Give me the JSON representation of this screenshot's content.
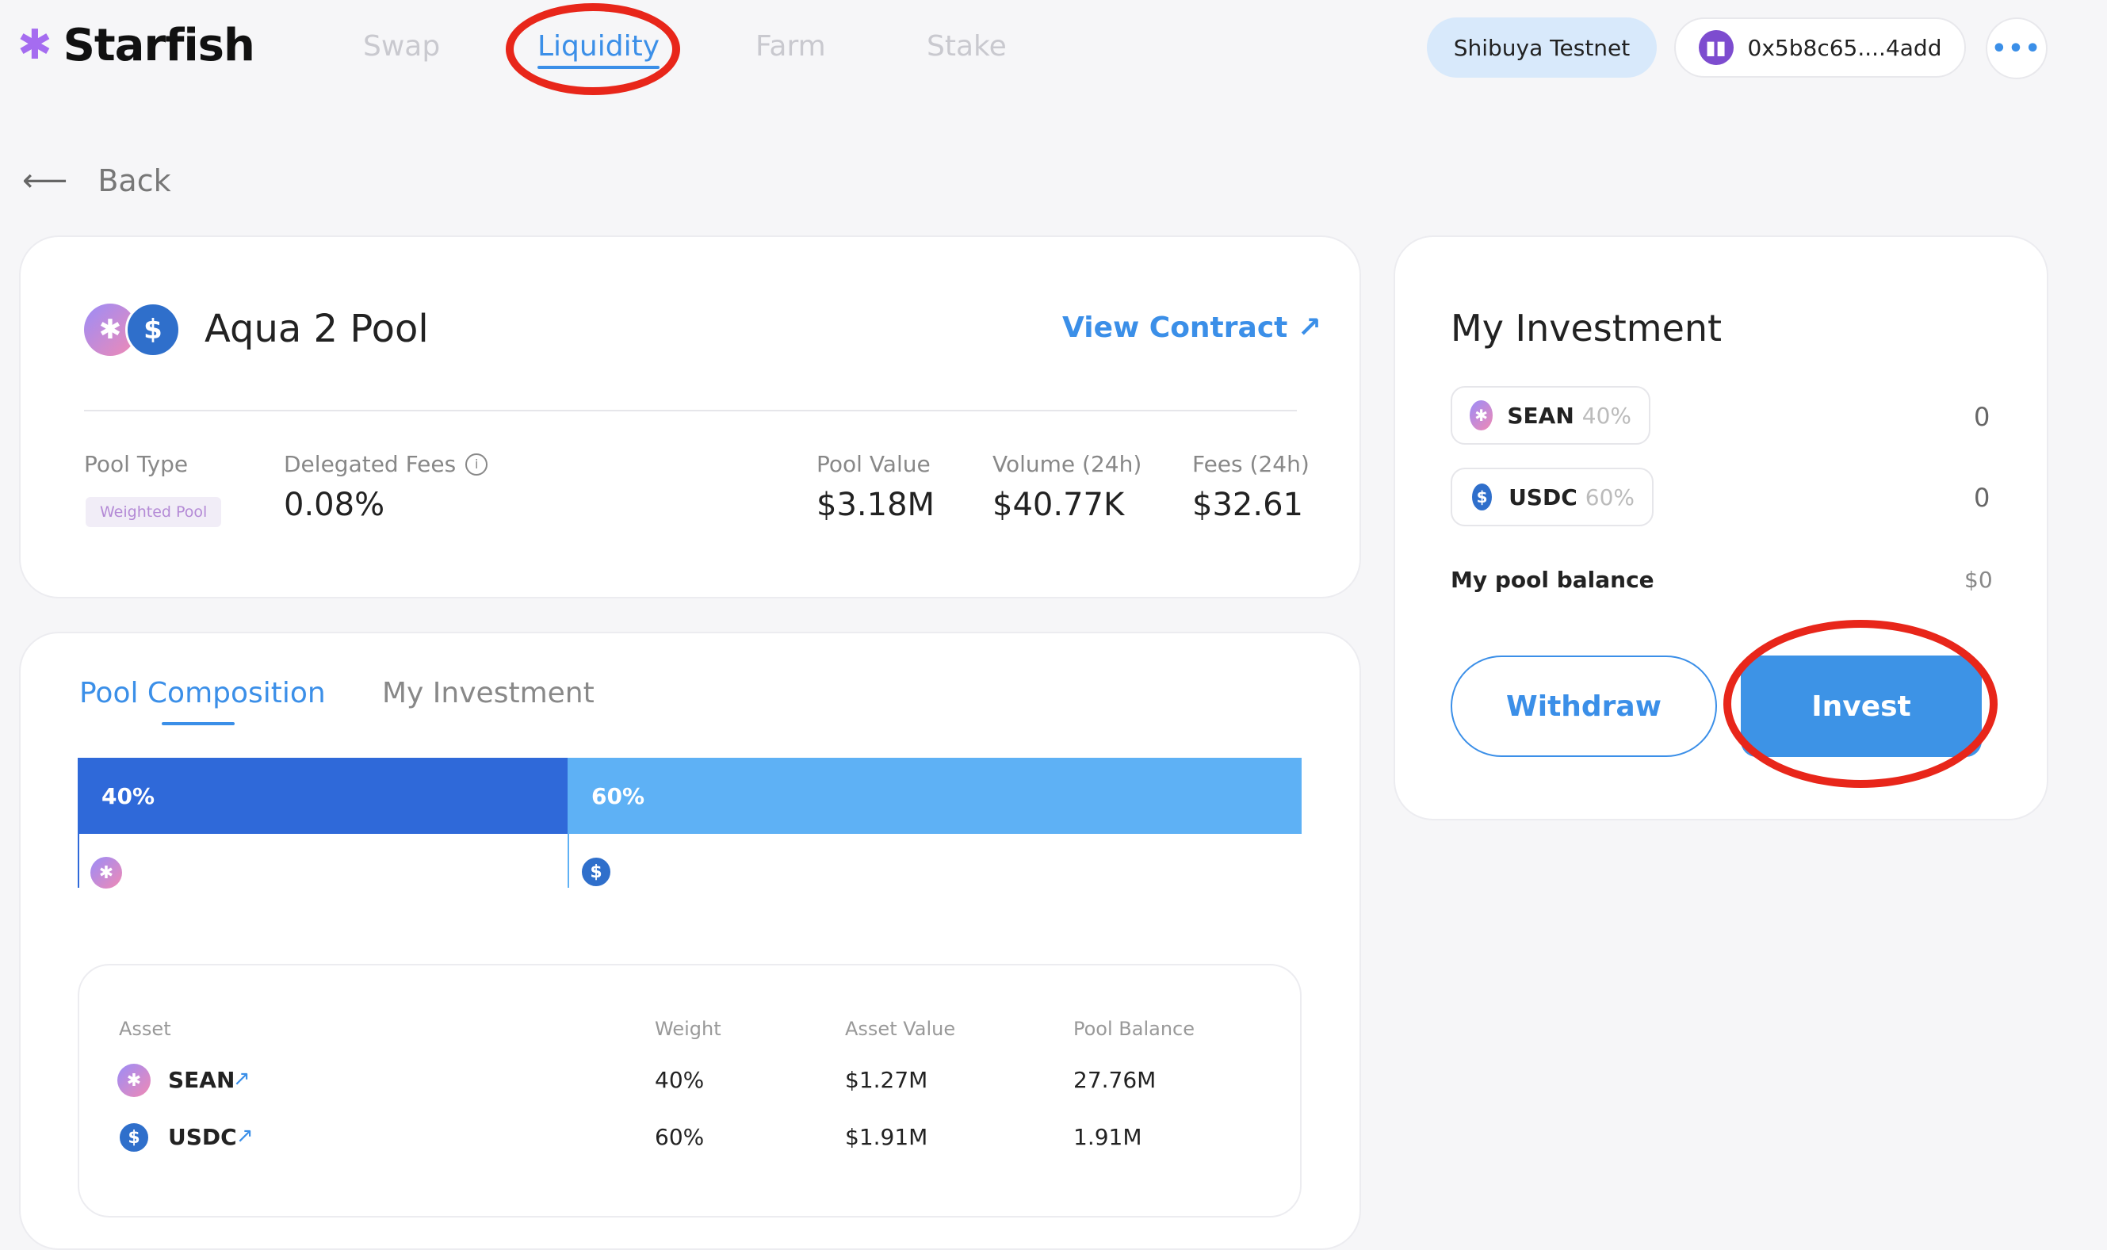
{
  "brand": {
    "name": "Starfish"
  },
  "nav": {
    "tabs": [
      {
        "label": "Swap"
      },
      {
        "label": "Liquidity"
      },
      {
        "label": "Farm"
      },
      {
        "label": "Stake"
      }
    ],
    "active_tab": "Liquidity"
  },
  "header": {
    "network_label": "Shibuya Testnet",
    "wallet_address": "0x5b8c65....4add",
    "more_label": "•••"
  },
  "back": {
    "label": "Back",
    "arrow": "⟵"
  },
  "pool": {
    "name": "Aqua 2 Pool",
    "view_contract_label": "View Contract ↗",
    "stats": {
      "pool_type_label": "Pool Type",
      "pool_type_value": "Weighted Pool",
      "delegated_fees_label": "Delegated Fees",
      "delegated_fees_value": "0.08%",
      "pool_value_label": "Pool Value",
      "pool_value": "$3.18M",
      "volume_label": "Volume (24h)",
      "volume_value": "$40.77K",
      "fees_label": "Fees (24h)",
      "fees_value": "$32.61"
    }
  },
  "composition": {
    "tabs": [
      {
        "label": "Pool Composition"
      },
      {
        "label": "My Investment"
      }
    ],
    "active_tab": "Pool Composition",
    "bar": [
      {
        "label": "40%",
        "fraction": 0.4,
        "color": "#2f69d9"
      },
      {
        "label": "60%",
        "fraction": 0.6,
        "color": "#5eb1f5"
      }
    ],
    "table": {
      "headers": [
        "Asset",
        "Weight",
        "Asset Value",
        "Pool Balance"
      ],
      "rows": [
        {
          "asset": "SEAN",
          "link": "↗",
          "weight": "40%",
          "asset_value": "$1.27M",
          "pool_balance": "27.76M"
        },
        {
          "asset": "USDC",
          "link": "↗",
          "weight": "60%",
          "asset_value": "$1.91M",
          "pool_balance": "1.91M"
        }
      ]
    }
  },
  "my_investment": {
    "title": "My Investment",
    "assets": [
      {
        "symbol": "SEAN",
        "weight": "40%",
        "amount": "0"
      },
      {
        "symbol": "USDC",
        "weight": "60%",
        "amount": "0"
      }
    ],
    "balance_label": "My pool balance",
    "balance_value": "$0",
    "withdraw_label": "Withdraw",
    "invest_label": "Invest"
  },
  "colors": {
    "accent": "#3b8fe8",
    "highlight_ring": "#e8261a",
    "invest_button": "#3d93e6"
  },
  "icons": {
    "sean": "sean-token-icon",
    "usdc": "usdc-token-icon",
    "info": "info-icon",
    "external": "external-link-icon"
  }
}
